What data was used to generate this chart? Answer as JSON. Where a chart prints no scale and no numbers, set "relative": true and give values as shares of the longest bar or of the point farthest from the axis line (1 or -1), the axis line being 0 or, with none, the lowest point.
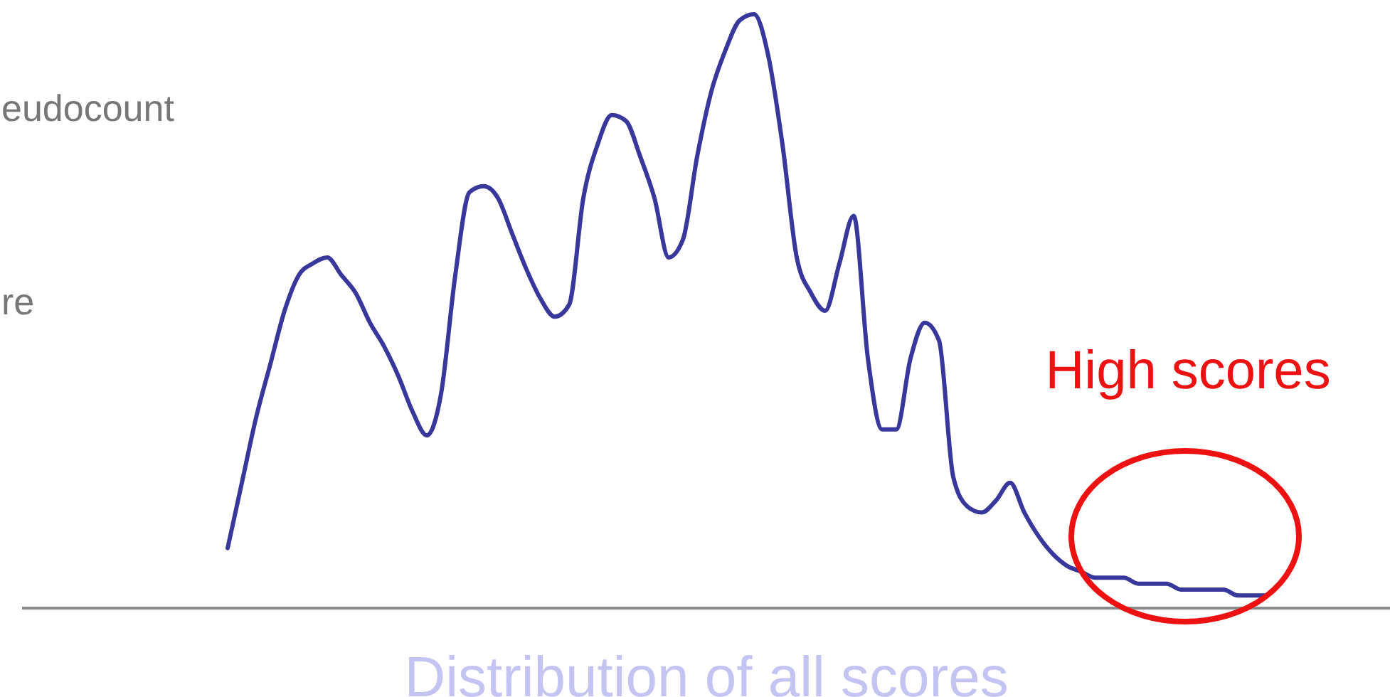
{
  "chart_data": {
    "type": "line",
    "relative": true,
    "xlabel": "Distribution of all scores",
    "categories": [
      null,
      null,
      null,
      null,
      null,
      null,
      null,
      null,
      null,
      null,
      null,
      null,
      null,
      null,
      null,
      null,
      null,
      null,
      null,
      null,
      null,
      null,
      null,
      null,
      null,
      null,
      null,
      null,
      null,
      null,
      null,
      null,
      null,
      null,
      null,
      null,
      null,
      null,
      null,
      null,
      null,
      null,
      null,
      null,
      null,
      null,
      null,
      null,
      null,
      null,
      null,
      null,
      null,
      null,
      null,
      null,
      null,
      null,
      null,
      null,
      null,
      null,
      null,
      null,
      null,
      null,
      null,
      null,
      null,
      null,
      null,
      null,
      null,
      null
    ],
    "series": [
      {
        "color": "#38389c",
        "values": [
          0.1,
          0.21,
          0.32,
          0.41,
          0.5,
          0.56,
          0.58,
          0.59,
          0.56,
          0.53,
          0.48,
          0.44,
          0.39,
          0.33,
          0.29,
          0.36,
          0.56,
          0.7,
          0.71,
          0.69,
          0.63,
          0.57,
          0.52,
          0.49,
          0.51,
          0.69,
          0.78,
          0.83,
          0.82,
          0.76,
          0.69,
          0.59,
          0.62,
          0.76,
          0.87,
          0.94,
          0.99,
          1,
          0.93,
          0.78,
          0.59,
          0.53,
          0.5,
          0.58,
          0.66,
          0.42,
          0.3,
          0.3,
          0.42,
          0.48,
          0.45,
          0.22,
          0.17,
          0.16,
          0.18,
          0.21,
          0.16,
          0.12,
          0.09,
          0.07,
          0.06,
          0.05,
          0.05,
          0.05,
          0.04,
          0.04,
          0.04,
          0.03,
          0.03,
          0.03,
          0.03,
          0.02,
          0.02,
          0.02
        ]
      }
    ],
    "annotations": [
      "eudocount",
      "re",
      "High scores"
    ]
  }
}
